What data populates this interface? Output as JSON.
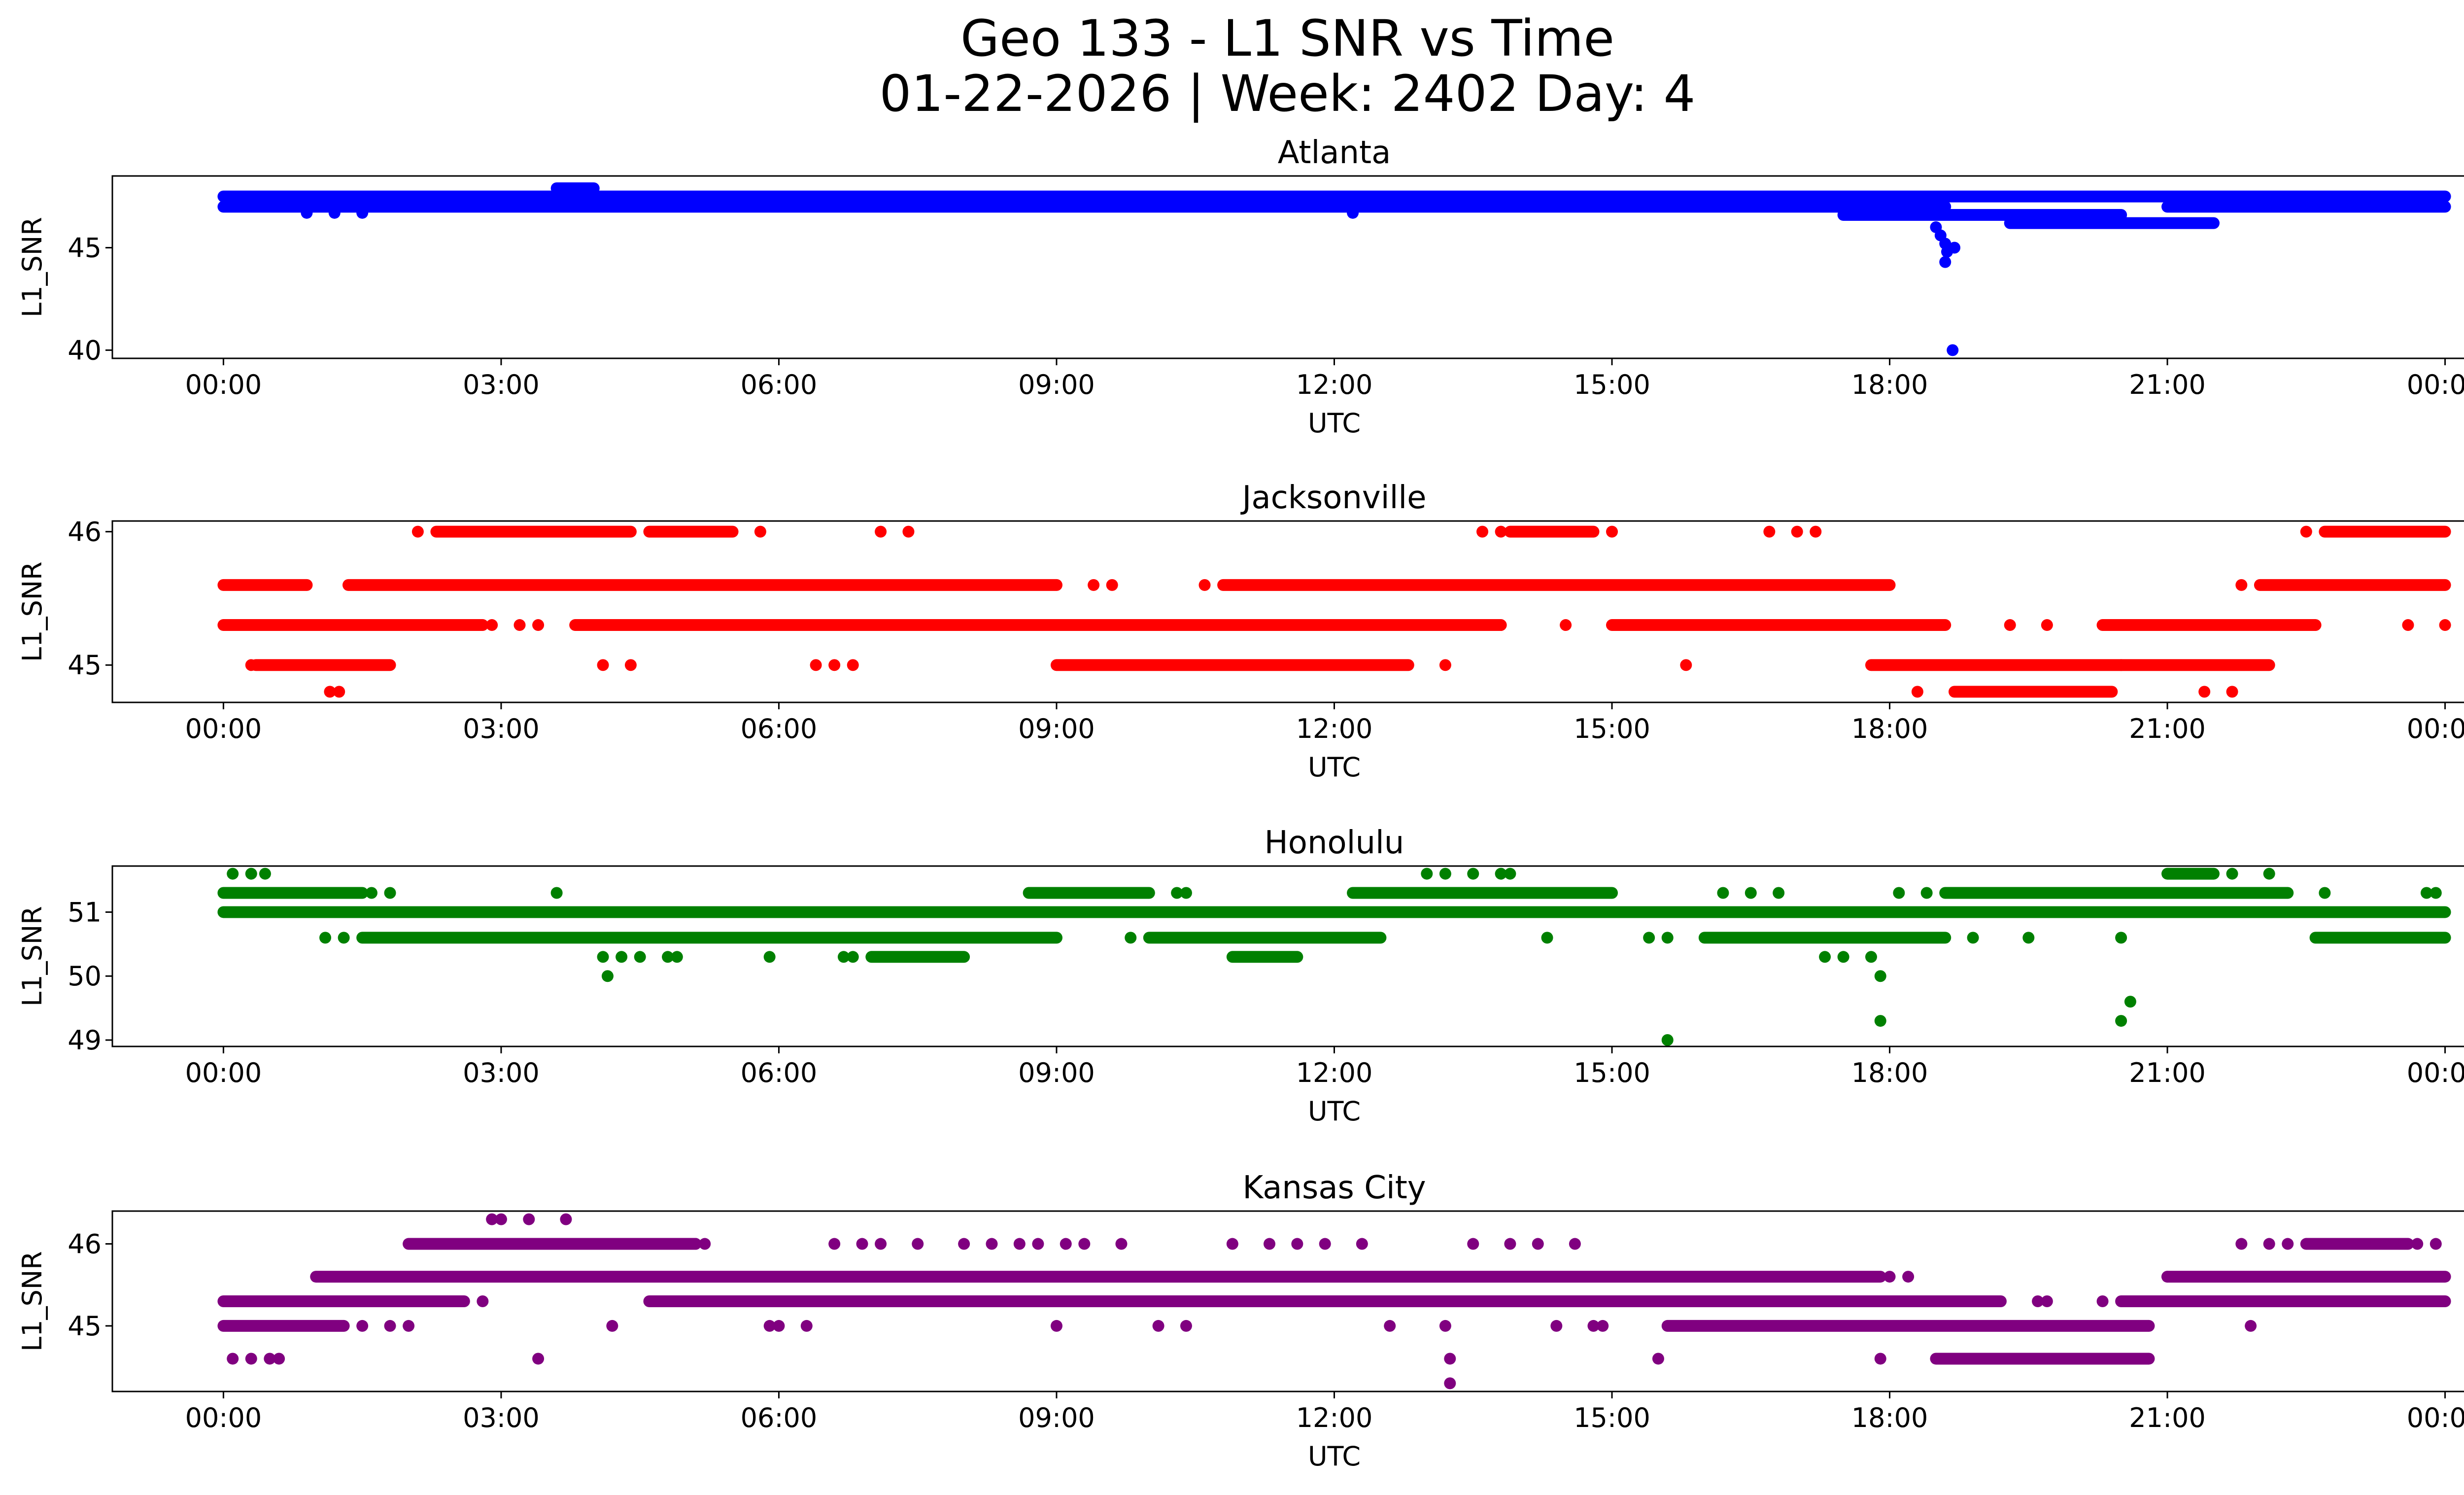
{
  "figure": {
    "title_line1": "Geo 133 - L1 SNR vs Time",
    "title_line2": "01-22-2026 | Week: 2402 Day: 4"
  },
  "chart_data": [
    {
      "type": "scatter",
      "title": "Atlanta",
      "xlabel": "UTC",
      "ylabel": "L1_SNR",
      "color": "#0000ff",
      "xlim_hours": [
        -1.2,
        25.2
      ],
      "ylim": [
        39.6,
        48.5
      ],
      "xticks": [
        {
          "value": 0,
          "label": "00:00"
        },
        {
          "value": 3,
          "label": "03:00"
        },
        {
          "value": 6,
          "label": "06:00"
        },
        {
          "value": 9,
          "label": "09:00"
        },
        {
          "value": 12,
          "label": "12:00"
        },
        {
          "value": 15,
          "label": "15:00"
        },
        {
          "value": 18,
          "label": "18:00"
        },
        {
          "value": 21,
          "label": "21:00"
        },
        {
          "value": 24,
          "label": "00:00"
        }
      ],
      "yticks": [
        {
          "value": 40,
          "label": "40"
        },
        {
          "value": 45,
          "label": "45"
        }
      ],
      "runs": [
        {
          "y": 47.5,
          "from": 0.0,
          "to": 24.0
        },
        {
          "y": 47.0,
          "from": 0.0,
          "to": 18.6
        },
        {
          "y": 47.0,
          "from": 21.0,
          "to": 24.0
        },
        {
          "y": 46.6,
          "from": 17.5,
          "to": 20.5
        },
        {
          "y": 46.2,
          "from": 19.3,
          "to": 21.5
        },
        {
          "y": 47.9,
          "from": 3.6,
          "to": 4.0
        }
      ],
      "points": [
        [
          0.9,
          46.7
        ],
        [
          1.2,
          46.7
        ],
        [
          1.5,
          46.7
        ],
        [
          5.0,
          47.1
        ],
        [
          12.2,
          46.7
        ],
        [
          18.5,
          46.0
        ],
        [
          18.55,
          45.6
        ],
        [
          18.6,
          45.2
        ],
        [
          18.62,
          44.8
        ],
        [
          18.6,
          44.3
        ],
        [
          18.7,
          45.0
        ],
        [
          18.68,
          40.0
        ]
      ]
    },
    {
      "type": "scatter",
      "title": "Jacksonville",
      "xlabel": "UTC",
      "ylabel": "L1_SNR",
      "color": "#ff0000",
      "xlim_hours": [
        -1.2,
        25.2
      ],
      "ylim": [
        44.72,
        46.08
      ],
      "xticks": [
        {
          "value": 0,
          "label": "00:00"
        },
        {
          "value": 3,
          "label": "03:00"
        },
        {
          "value": 6,
          "label": "06:00"
        },
        {
          "value": 9,
          "label": "09:00"
        },
        {
          "value": 12,
          "label": "12:00"
        },
        {
          "value": 15,
          "label": "15:00"
        },
        {
          "value": 18,
          "label": "18:00"
        },
        {
          "value": 21,
          "label": "21:00"
        },
        {
          "value": 24,
          "label": "00:00"
        }
      ],
      "yticks": [
        {
          "value": 45,
          "label": "45"
        },
        {
          "value": 46,
          "label": "46"
        }
      ],
      "runs": [
        {
          "y": 45.6,
          "from": 0.0,
          "to": 0.9
        },
        {
          "y": 45.6,
          "from": 1.35,
          "to": 9.0
        },
        {
          "y": 45.6,
          "from": 10.8,
          "to": 18.0
        },
        {
          "y": 45.6,
          "from": 22.0,
          "to": 24.0
        },
        {
          "y": 45.3,
          "from": 0.0,
          "to": 2.8
        },
        {
          "y": 45.3,
          "from": 3.8,
          "to": 13.8
        },
        {
          "y": 45.3,
          "from": 15.0,
          "to": 18.6
        },
        {
          "y": 45.3,
          "from": 20.3,
          "to": 22.6
        },
        {
          "y": 45.0,
          "from": 0.35,
          "to": 1.8
        },
        {
          "y": 45.0,
          "from": 9.0,
          "to": 12.8
        },
        {
          "y": 45.0,
          "from": 17.8,
          "to": 22.1
        },
        {
          "y": 44.8,
          "from": 18.7,
          "to": 20.4
        },
        {
          "y": 46.0,
          "from": 2.3,
          "to": 4.4
        },
        {
          "y": 46.0,
          "from": 4.6,
          "to": 5.5
        },
        {
          "y": 46.0,
          "from": 13.9,
          "to": 14.8
        },
        {
          "y": 46.0,
          "from": 22.7,
          "to": 24.0
        }
      ],
      "points": [
        [
          0.3,
          45.0
        ],
        [
          1.15,
          44.8
        ],
        [
          1.25,
          44.8
        ],
        [
          2.1,
          46.0
        ],
        [
          2.9,
          45.3
        ],
        [
          3.2,
          45.3
        ],
        [
          3.4,
          45.3
        ],
        [
          4.1,
          45.0
        ],
        [
          4.4,
          45.0
        ],
        [
          5.8,
          46.0
        ],
        [
          6.4,
          45.0
        ],
        [
          6.6,
          45.0
        ],
        [
          6.8,
          45.0
        ],
        [
          7.1,
          46.0
        ],
        [
          7.4,
          46.0
        ],
        [
          9.4,
          45.6
        ],
        [
          9.6,
          45.6
        ],
        [
          10.6,
          45.6
        ],
        [
          13.2,
          45.0
        ],
        [
          13.6,
          46.0
        ],
        [
          13.8,
          46.0
        ],
        [
          14.5,
          45.3
        ],
        [
          15.0,
          46.0
        ],
        [
          15.8,
          45.0
        ],
        [
          16.7,
          46.0
        ],
        [
          17.0,
          46.0
        ],
        [
          17.2,
          46.0
        ],
        [
          18.3,
          44.8
        ],
        [
          21.4,
          44.8
        ],
        [
          21.7,
          44.8
        ],
        [
          20.5,
          45.0
        ],
        [
          19.3,
          45.3
        ],
        [
          19.7,
          45.3
        ],
        [
          21.8,
          45.6
        ],
        [
          22.5,
          46.0
        ],
        [
          23.6,
          45.3
        ],
        [
          24.0,
          45.3
        ]
      ]
    },
    {
      "type": "scatter",
      "title": "Honolulu",
      "xlabel": "UTC",
      "ylabel": "L1_SNR",
      "color": "#008000",
      "xlim_hours": [
        -1.2,
        25.2
      ],
      "ylim": [
        48.9,
        51.72
      ],
      "xticks": [
        {
          "value": 0,
          "label": "00:00"
        },
        {
          "value": 3,
          "label": "03:00"
        },
        {
          "value": 6,
          "label": "06:00"
        },
        {
          "value": 9,
          "label": "09:00"
        },
        {
          "value": 12,
          "label": "12:00"
        },
        {
          "value": 15,
          "label": "15:00"
        },
        {
          "value": 18,
          "label": "18:00"
        },
        {
          "value": 21,
          "label": "21:00"
        },
        {
          "value": 24,
          "label": "00:00"
        }
      ],
      "yticks": [
        {
          "value": 49,
          "label": "49"
        },
        {
          "value": 50,
          "label": "50"
        },
        {
          "value": 51,
          "label": "51"
        }
      ],
      "runs": [
        {
          "y": 51.0,
          "from": 0.0,
          "to": 24.0
        },
        {
          "y": 51.3,
          "from": 0.0,
          "to": 1.5
        },
        {
          "y": 51.3,
          "from": 8.7,
          "to": 10.0
        },
        {
          "y": 51.3,
          "from": 12.2,
          "to": 15.0
        },
        {
          "y": 51.3,
          "from": 18.6,
          "to": 22.3
        },
        {
          "y": 50.6,
          "from": 1.5,
          "to": 9.0
        },
        {
          "y": 50.6,
          "from": 10.0,
          "to": 12.5
        },
        {
          "y": 50.6,
          "from": 16.0,
          "to": 18.6
        },
        {
          "y": 50.6,
          "from": 22.6,
          "to": 24.0
        },
        {
          "y": 50.3,
          "from": 7.0,
          "to": 8.0
        },
        {
          "y": 50.3,
          "from": 10.9,
          "to": 11.6
        },
        {
          "y": 51.6,
          "from": 21.0,
          "to": 21.5
        }
      ],
      "points": [
        [
          0.1,
          51.6
        ],
        [
          0.3,
          51.6
        ],
        [
          0.45,
          51.6
        ],
        [
          1.1,
          50.6
        ],
        [
          1.3,
          50.6
        ],
        [
          1.6,
          51.3
        ],
        [
          1.8,
          51.3
        ],
        [
          3.6,
          51.3
        ],
        [
          4.1,
          50.3
        ],
        [
          4.3,
          50.3
        ],
        [
          4.5,
          50.3
        ],
        [
          4.8,
          50.3
        ],
        [
          4.9,
          50.3
        ],
        [
          4.15,
          50.0
        ],
        [
          5.9,
          50.3
        ],
        [
          6.7,
          50.3
        ],
        [
          6.8,
          50.3
        ],
        [
          9.8,
          50.6
        ],
        [
          10.3,
          51.3
        ],
        [
          10.4,
          51.3
        ],
        [
          13.0,
          51.6
        ],
        [
          13.2,
          51.6
        ],
        [
          13.5,
          51.6
        ],
        [
          13.8,
          51.6
        ],
        [
          13.9,
          51.6
        ],
        [
          14.3,
          50.6
        ],
        [
          15.4,
          50.6
        ],
        [
          15.6,
          50.6
        ],
        [
          15.6,
          49.0
        ],
        [
          16.2,
          51.3
        ],
        [
          16.5,
          51.3
        ],
        [
          16.8,
          51.3
        ],
        [
          17.3,
          50.3
        ],
        [
          17.5,
          50.3
        ],
        [
          17.8,
          50.3
        ],
        [
          17.9,
          50.0
        ],
        [
          17.9,
          49.3
        ],
        [
          18.1,
          51.3
        ],
        [
          18.4,
          51.3
        ],
        [
          18.9,
          50.6
        ],
        [
          19.5,
          50.6
        ],
        [
          20.5,
          50.6
        ],
        [
          20.5,
          49.3
        ],
        [
          20.6,
          49.6
        ],
        [
          20.5,
          51.3
        ],
        [
          21.7,
          51.6
        ],
        [
          22.1,
          51.6
        ],
        [
          22.7,
          51.3
        ],
        [
          23.8,
          51.3
        ],
        [
          23.9,
          51.3
        ]
      ]
    },
    {
      "type": "scatter",
      "title": "Kansas City",
      "xlabel": "UTC",
      "ylabel": "L1_SNR",
      "color": "#800080",
      "xlim_hours": [
        -1.2,
        25.2
      ],
      "ylim": [
        44.2,
        46.4
      ],
      "xticks": [
        {
          "value": 0,
          "label": "00:00"
        },
        {
          "value": 3,
          "label": "03:00"
        },
        {
          "value": 6,
          "label": "06:00"
        },
        {
          "value": 9,
          "label": "09:00"
        },
        {
          "value": 12,
          "label": "12:00"
        },
        {
          "value": 15,
          "label": "15:00"
        },
        {
          "value": 18,
          "label": "18:00"
        },
        {
          "value": 21,
          "label": "21:00"
        },
        {
          "value": 24,
          "label": "00:00"
        }
      ],
      "yticks": [
        {
          "value": 45,
          "label": "45"
        },
        {
          "value": 46,
          "label": "46"
        }
      ],
      "runs": [
        {
          "y": 45.6,
          "from": 1.0,
          "to": 17.9
        },
        {
          "y": 45.6,
          "from": 21.0,
          "to": 24.0
        },
        {
          "y": 45.3,
          "from": 0.0,
          "to": 2.6
        },
        {
          "y": 45.3,
          "from": 4.6,
          "to": 19.2
        },
        {
          "y": 45.3,
          "from": 20.5,
          "to": 24.0
        },
        {
          "y": 45.0,
          "from": 0.0,
          "to": 1.3
        },
        {
          "y": 45.0,
          "from": 15.6,
          "to": 20.8
        },
        {
          "y": 46.0,
          "from": 2.0,
          "to": 5.1
        },
        {
          "y": 46.0,
          "from": 22.5,
          "to": 23.6
        },
        {
          "y": 44.6,
          "from": 18.5,
          "to": 20.8
        }
      ],
      "points": [
        [
          0.1,
          44.6
        ],
        [
          0.3,
          44.6
        ],
        [
          0.5,
          44.6
        ],
        [
          0.6,
          44.6
        ],
        [
          1.5,
          45.0
        ],
        [
          1.8,
          45.0
        ],
        [
          2.0,
          45.0
        ],
        [
          2.8,
          45.3
        ],
        [
          2.9,
          46.3
        ],
        [
          3.0,
          46.3
        ],
        [
          3.3,
          46.3
        ],
        [
          3.7,
          46.3
        ],
        [
          3.4,
          44.6
        ],
        [
          4.2,
          45.0
        ],
        [
          5.1,
          46.0
        ],
        [
          5.2,
          46.0
        ],
        [
          5.9,
          45.0
        ],
        [
          6.0,
          45.0
        ],
        [
          6.3,
          45.0
        ],
        [
          6.6,
          46.0
        ],
        [
          6.9,
          46.0
        ],
        [
          7.1,
          46.0
        ],
        [
          7.5,
          46.0
        ],
        [
          8.0,
          46.0
        ],
        [
          8.3,
          46.0
        ],
        [
          8.6,
          46.0
        ],
        [
          8.8,
          46.0
        ],
        [
          9.1,
          46.0
        ],
        [
          9.0,
          45.0
        ],
        [
          9.3,
          46.0
        ],
        [
          9.7,
          46.0
        ],
        [
          10.1,
          45.0
        ],
        [
          10.4,
          45.0
        ],
        [
          10.9,
          46.0
        ],
        [
          11.3,
          46.0
        ],
        [
          11.6,
          46.0
        ],
        [
          11.9,
          46.0
        ],
        [
          12.3,
          46.0
        ],
        [
          12.6,
          45.0
        ],
        [
          13.2,
          45.0
        ],
        [
          13.25,
          44.6
        ],
        [
          13.25,
          44.3
        ],
        [
          13.5,
          46.0
        ],
        [
          13.9,
          46.0
        ],
        [
          14.2,
          46.0
        ],
        [
          14.6,
          46.0
        ],
        [
          14.4,
          45.0
        ],
        [
          14.8,
          45.0
        ],
        [
          14.9,
          45.0
        ],
        [
          15.5,
          44.6
        ],
        [
          17.9,
          44.6
        ],
        [
          18.0,
          45.6
        ],
        [
          18.2,
          45.6
        ],
        [
          19.6,
          45.3
        ],
        [
          19.7,
          45.3
        ],
        [
          20.3,
          45.3
        ],
        [
          21.0,
          45.6
        ],
        [
          21.8,
          46.0
        ],
        [
          22.1,
          46.0
        ],
        [
          22.3,
          46.0
        ],
        [
          21.9,
          45.0
        ],
        [
          23.7,
          46.0
        ],
        [
          23.9,
          46.0
        ]
      ]
    }
  ]
}
